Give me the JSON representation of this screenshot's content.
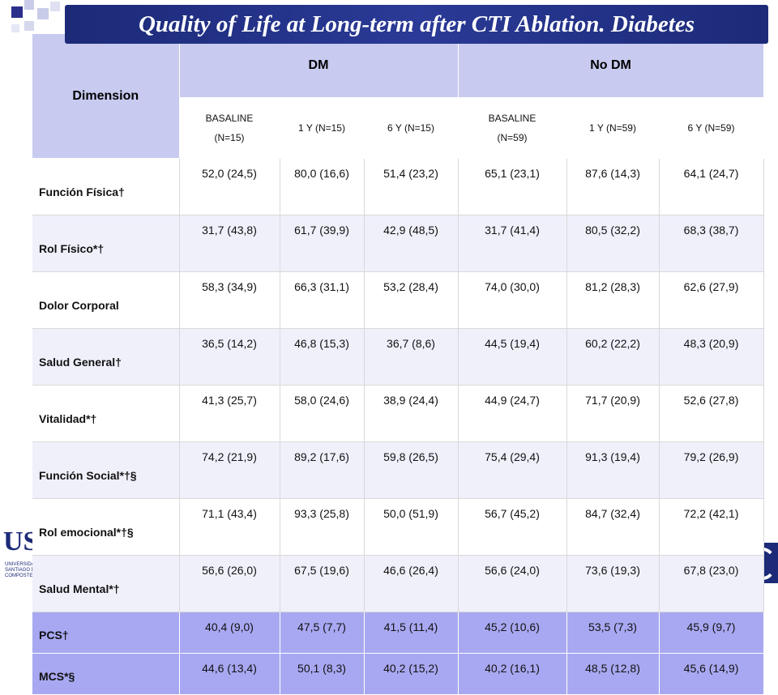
{
  "title": "Quality of Life at Long-term after CTI Ablation. Diabetes",
  "logo_left": {
    "text": "US",
    "sub": "UNIVERSIDADE DE SANTIAGO DE COMPOSTELA"
  },
  "table": {
    "dimension_header": "Dimension",
    "groups": [
      "DM",
      "No DM"
    ],
    "subheaders": [
      [
        "BASALINE",
        "(N=15)"
      ],
      [
        "1 Y (N=15)"
      ],
      [
        "6 Y (N=15)"
      ],
      [
        "BASALINE",
        "(N=59)"
      ],
      [
        "1 Y (N=59)"
      ],
      [
        "6 Y (N=59)"
      ]
    ],
    "rows": [
      {
        "dimension": "Función Física†",
        "values": [
          "52,0 (24,5)",
          "80,0 (16,6)",
          "51,4 (23,2)",
          "65,1 (23,1)",
          "87,6 (14,3)",
          "64,1 (24,7)"
        ]
      },
      {
        "dimension": "Rol Físico*†",
        "values": [
          "31,7 (43,8)",
          "61,7 (39,9)",
          "42,9 (48,5)",
          "31,7 (41,4)",
          "80,5 (32,2)",
          "68,3 (38,7)"
        ]
      },
      {
        "dimension": "Dolor Corporal",
        "values": [
          "58,3 (34,9)",
          "66,3 (31,1)",
          "53,2 (28,4)",
          "74,0 (30,0)",
          "81,2 (28,3)",
          "62,6 (27,9)"
        ]
      },
      {
        "dimension": "Salud General†",
        "values": [
          "36,5 (14,2)",
          "46,8 (15,3)",
          "36,7 (8,6)",
          "44,5 (19,4)",
          "60,2 (22,2)",
          "48,3 (20,9)"
        ]
      },
      {
        "dimension": "Vitalidad*†",
        "values": [
          "41,3 (25,7)",
          "58,0 (24,6)",
          "38,9 (24,4)",
          "44,9 (24,7)",
          "71,7 (20,9)",
          "52,6 (27,8)"
        ]
      },
      {
        "dimension": "Función Social*†§",
        "values": [
          "74,2 (21,9)",
          "89,2 (17,6)",
          "59,8 (26,5)",
          "75,4 (29,4)",
          "91,3 (19,4)",
          "79,2 (26,9)"
        ]
      },
      {
        "dimension": "Rol emocional*†§",
        "values": [
          "71,1 (43,4)",
          "93,3 (25,8)",
          "50,0 (51,9)",
          "56,7 (45,2)",
          "84,7 (32,4)",
          "72,2 (42,1)"
        ]
      },
      {
        "dimension": "Salud Mental*†",
        "values": [
          "56,6 (26,0)",
          "67,5 (19,6)",
          "46,6 (26,4)",
          "56,6 (24,0)",
          "73,6 (19,3)",
          "67,8 (23,0)"
        ]
      },
      {
        "dimension": "PCS†",
        "values": [
          "40,4 (9,0)",
          "47,5 (7,7)",
          "41,5 (11,4)",
          "45,2 (10,6)",
          "53,5 (7,3)",
          "45,9 (9,7)"
        ]
      },
      {
        "dimension": "MCS*§",
        "values": [
          "44,6 (13,4)",
          "50,1 (8,3)",
          "40,2 (15,2)",
          "40,2 (16,1)",
          "48,5 (12,8)",
          "45,6 (14,9)"
        ]
      }
    ]
  },
  "colors": {
    "banner": "#1c2a78",
    "header": "#c8caf0",
    "summary_rows": "#a8a8f2"
  }
}
